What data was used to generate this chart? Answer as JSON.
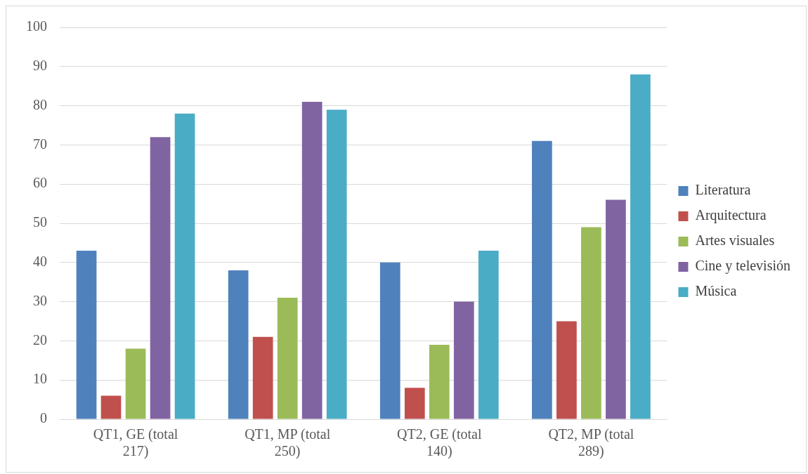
{
  "chart_data": {
    "type": "bar",
    "categories": [
      "QT1, GE (total 217)",
      "QT1, MP (total 250)",
      "QT2, GE (total 140)",
      "QT2, MP (total 289)"
    ],
    "series": [
      {
        "name": "Literatura",
        "color": "#4f81bd",
        "values": [
          43,
          38,
          40,
          71
        ]
      },
      {
        "name": "Arquitectura",
        "color": "#c0504d",
        "values": [
          6,
          21,
          8,
          25
        ]
      },
      {
        "name": "Artes visuales",
        "color": "#9bbb59",
        "values": [
          18,
          31,
          19,
          49
        ]
      },
      {
        "name": "Cine y televisión",
        "color": "#8064a2",
        "values": [
          72,
          81,
          30,
          56
        ]
      },
      {
        "name": "Música",
        "color": "#4bacc6",
        "values": [
          78,
          79,
          43,
          88
        ]
      }
    ],
    "ylim": [
      0,
      100
    ],
    "yticks": [
      0,
      10,
      20,
      30,
      40,
      50,
      60,
      70,
      80,
      90,
      100
    ],
    "grid": "y",
    "legend": "right"
  }
}
